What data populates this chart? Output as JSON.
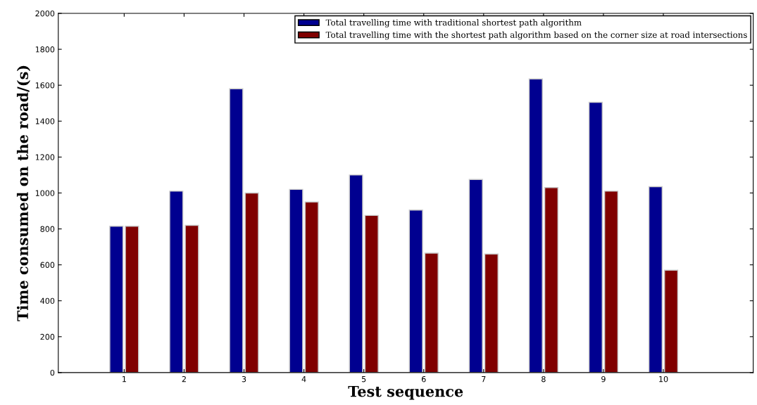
{
  "chart_data": {
    "type": "bar",
    "xlabel": "Test sequence",
    "ylabel": "Time consumed on the road/(s)",
    "categories": [
      "1",
      "2",
      "3",
      "4",
      "5",
      "6",
      "7",
      "8",
      "9",
      "10"
    ],
    "series": [
      {
        "name": "Total travelling time with traditional shortest path algorithm",
        "color": "#000090",
        "values": [
          815,
          1010,
          1580,
          1020,
          1100,
          905,
          1075,
          1635,
          1505,
          1035
        ]
      },
      {
        "name": "Total travelling time with the shortest path algorithm based on the corner size at road intersections",
        "color": "#800000",
        "values": [
          815,
          820,
          1000,
          950,
          875,
          665,
          660,
          1030,
          1010,
          570
        ]
      }
    ],
    "ylim": [
      0,
      2000
    ],
    "yticks": [
      0,
      200,
      400,
      600,
      800,
      1000,
      1200,
      1400,
      1600,
      1800,
      2000
    ],
    "grid": false,
    "legend": "top right"
  }
}
